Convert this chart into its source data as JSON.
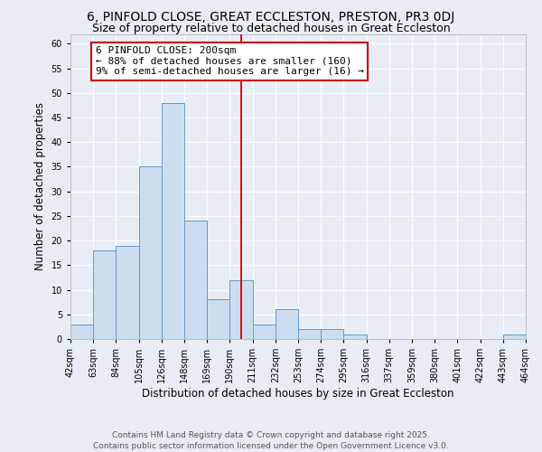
{
  "title": "6, PINFOLD CLOSE, GREAT ECCLESTON, PRESTON, PR3 0DJ",
  "subtitle": "Size of property relative to detached houses in Great Eccleston",
  "xlabel": "Distribution of detached houses by size in Great Eccleston",
  "ylabel": "Number of detached properties",
  "bin_labels": [
    "42sqm",
    "63sqm",
    "84sqm",
    "105sqm",
    "126sqm",
    "148sqm",
    "169sqm",
    "190sqm",
    "211sqm",
    "232sqm",
    "253sqm",
    "274sqm",
    "295sqm",
    "316sqm",
    "337sqm",
    "359sqm",
    "380sqm",
    "401sqm",
    "422sqm",
    "443sqm",
    "464sqm"
  ],
  "bar_values": [
    3,
    18,
    19,
    35,
    48,
    24,
    8,
    12,
    3,
    6,
    2,
    2,
    1,
    0,
    0,
    0,
    0,
    0,
    0,
    1
  ],
  "bar_color": "#ccddf0",
  "bar_edge_color": "#6699cc",
  "background_color": "#e8edf5",
  "grid_color": "#ffffff",
  "vline_x_index": 7.5,
  "vline_color": "#cc0000",
  "ylim": [
    0,
    62
  ],
  "yticks": [
    0,
    5,
    10,
    15,
    20,
    25,
    30,
    35,
    40,
    45,
    50,
    55,
    60
  ],
  "annotation_title": "6 PINFOLD CLOSE: 200sqm",
  "annotation_line1": "← 88% of detached houses are smaller (160)",
  "annotation_line2": "9% of semi-detached houses are larger (16) →",
  "annotation_box_color": "#cc0000",
  "footnote1": "Contains HM Land Registry data © Crown copyright and database right 2025.",
  "footnote2": "Contains public sector information licensed under the Open Government Licence v3.0.",
  "title_fontsize": 10,
  "subtitle_fontsize": 9,
  "axis_label_fontsize": 8.5,
  "tick_fontsize": 7,
  "annotation_fontsize": 8,
  "footnote_fontsize": 6.5
}
